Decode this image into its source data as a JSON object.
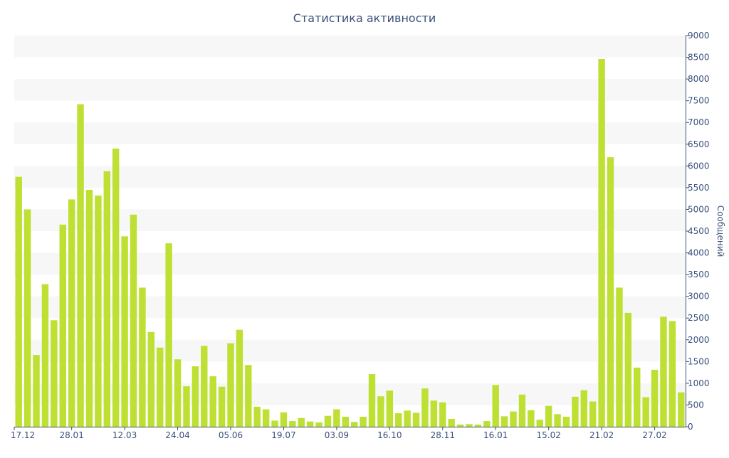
{
  "chart_data": {
    "type": "bar",
    "title": "Статистика активности",
    "xlabel": "",
    "ylabel": "Сообщений",
    "y_axis_side": "right",
    "ylim": [
      0,
      9000
    ],
    "y_ticks": [
      0,
      500,
      1000,
      1500,
      2000,
      2500,
      3000,
      3500,
      4000,
      4500,
      5000,
      5500,
      6000,
      6500,
      7000,
      7500,
      8000,
      8500,
      9000
    ],
    "x_tick_labels": [
      {
        "label": "17.12",
        "index": 0
      },
      {
        "label": "28.01",
        "index": 6
      },
      {
        "label": "12.03",
        "index": 12
      },
      {
        "label": "24.04",
        "index": 18
      },
      {
        "label": "05.06",
        "index": 24
      },
      {
        "label": "19.07",
        "index": 30
      },
      {
        "label": "03.09",
        "index": 36
      },
      {
        "label": "16.10",
        "index": 42
      },
      {
        "label": "28.11",
        "index": 48
      },
      {
        "label": "16.01",
        "index": 54
      },
      {
        "label": "15.02",
        "index": 60
      },
      {
        "label": "21.02",
        "index": 66
      },
      {
        "label": "27.02",
        "index": 72
      }
    ],
    "values": [
      5750,
      5000,
      1650,
      3280,
      2450,
      4650,
      5230,
      7420,
      5450,
      5320,
      5880,
      6400,
      4380,
      4880,
      3200,
      2180,
      1820,
      4220,
      1550,
      930,
      1390,
      1860,
      1160,
      920,
      1920,
      2230,
      1420,
      460,
      400,
      140,
      330,
      130,
      200,
      120,
      100,
      250,
      400,
      230,
      110,
      230,
      1210,
      700,
      830,
      310,
      370,
      320,
      880,
      600,
      560,
      180,
      50,
      60,
      50,
      130,
      960,
      240,
      350,
      740,
      380,
      160,
      480,
      290,
      230,
      690,
      840,
      580,
      8460,
      6200,
      3200,
      2620,
      1360,
      680,
      1310,
      2530,
      2430,
      790
    ],
    "bar_color": "#bde033",
    "grid": "alternating-bands",
    "band_color": "#f7f7f7"
  }
}
